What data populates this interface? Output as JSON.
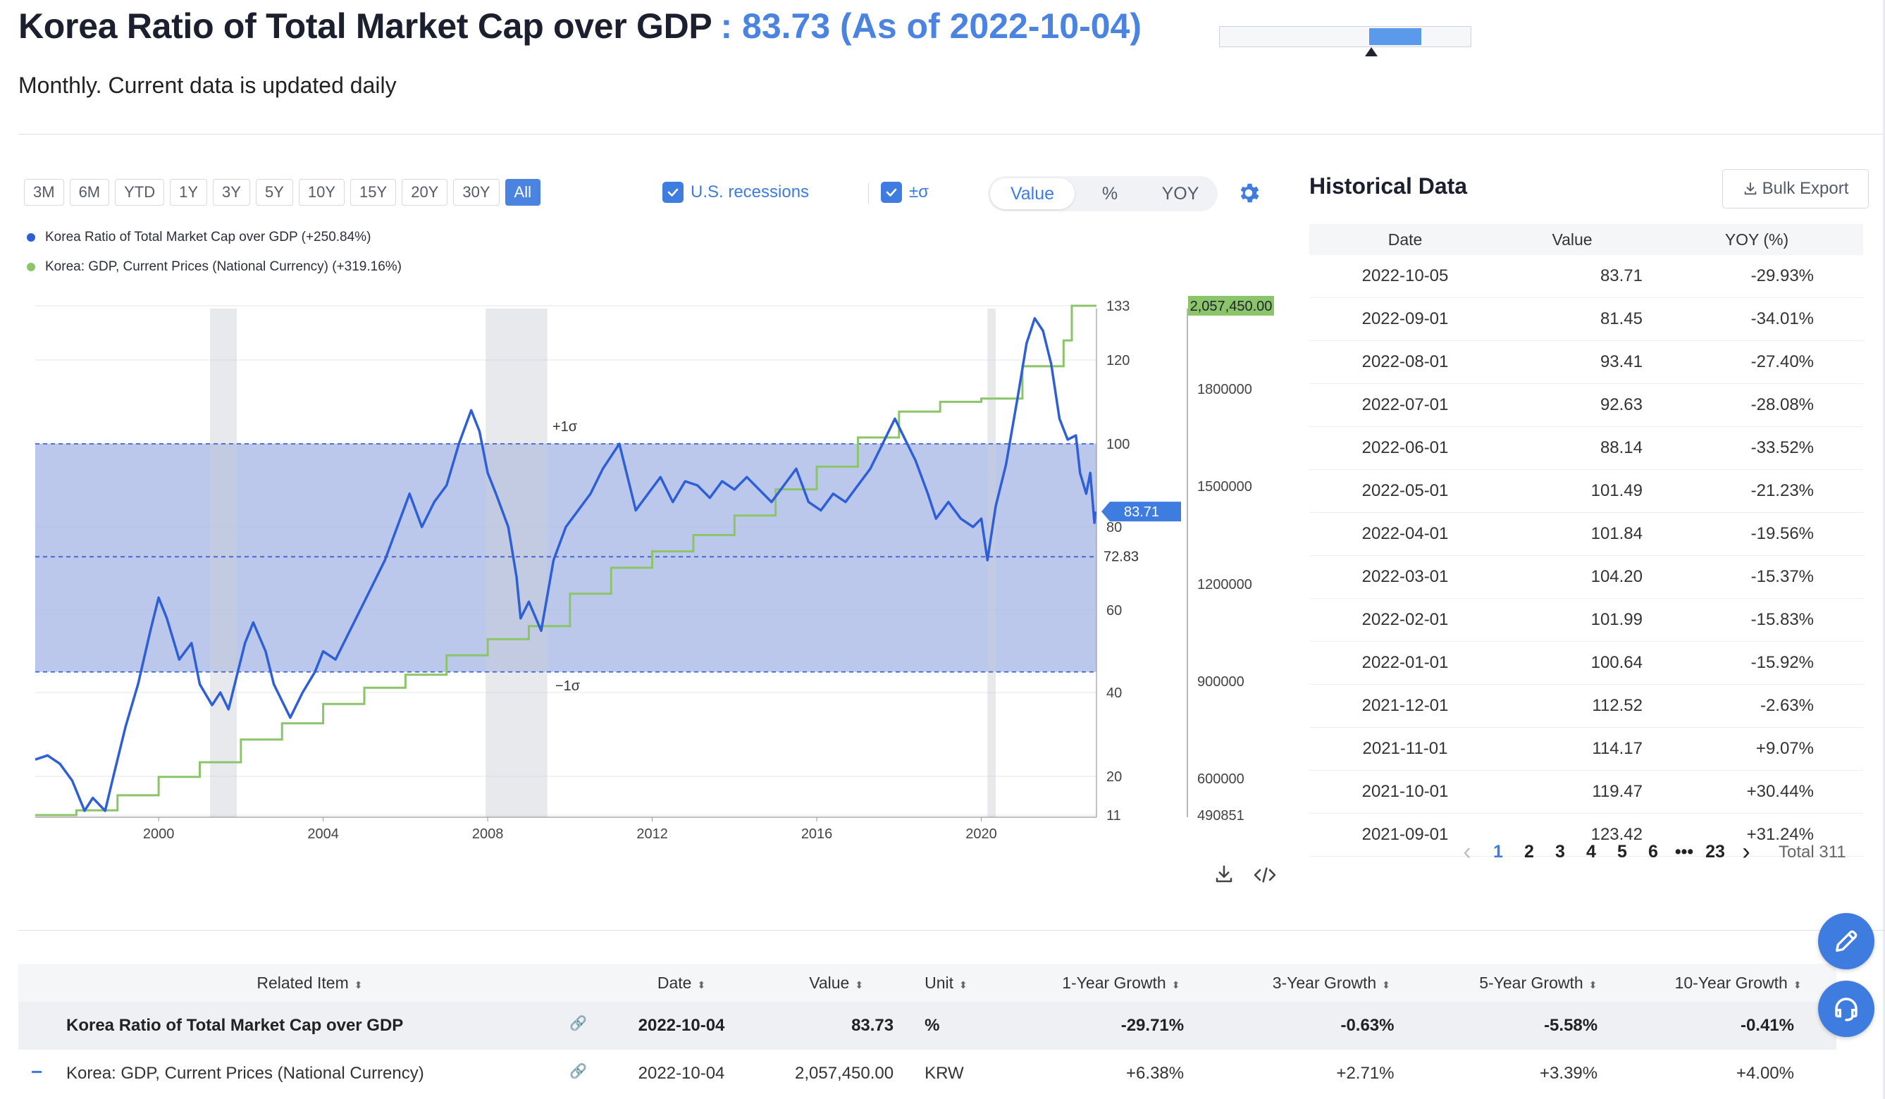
{
  "header": {
    "title": "Korea Ratio of Total Market Cap over GDP",
    "value_text": ": 83.73 (As of 2022-10-04)",
    "subtitle": "Monthly. Current data is updated daily"
  },
  "range_buttons": [
    "3M",
    "6M",
    "YTD",
    "1Y",
    "3Y",
    "5Y",
    "10Y",
    "15Y",
    "20Y",
    "30Y",
    "All"
  ],
  "active_range": "All",
  "toggles": {
    "recessions_label": "U.S. recessions",
    "sigma_label": "±σ"
  },
  "view_modes": [
    "Value",
    "%",
    "YOY"
  ],
  "active_view": "Value",
  "legend": [
    {
      "label": "Korea Ratio of Total Market Cap over GDP (+250.84%)",
      "color": "#2f5fd6"
    },
    {
      "label": "Korea: GDP, Current Prices (National Currency) (+319.16%)",
      "color": "#8cc46a"
    }
  ],
  "chart_data": {
    "type": "line",
    "x_ticks": [
      "2000",
      "2004",
      "2008",
      "2012",
      "2016",
      "2020"
    ],
    "left_axis_ticks": [
      "133",
      "120",
      "100",
      "80",
      "60",
      "40",
      "20",
      "11"
    ],
    "right_axis_ticks": [
      "1800000",
      "1500000",
      "1200000",
      "900000",
      "600000",
      "490851"
    ],
    "band_labels": {
      "upper": "+1σ",
      "lower": "−1σ",
      "mean": "72.83"
    },
    "mean": 72.83,
    "plus_sigma": 100,
    "minus_sigma": 45,
    "ylim_left": [
      11,
      133
    ],
    "ylim_right": [
      490851,
      2057450
    ],
    "recessions": [
      [
        2001.25,
        2001.9
      ],
      [
        2007.95,
        2009.45
      ],
      [
        2020.15,
        2020.35
      ]
    ],
    "current_labels": {
      "ratio": "83.71",
      "gdp": "2,057,450.00"
    },
    "series": [
      {
        "name": "Korea Ratio of Total Market Cap over GDP",
        "color": "#2f5fd6",
        "points": [
          [
            1997.0,
            24
          ],
          [
            1997.3,
            25
          ],
          [
            1997.6,
            23
          ],
          [
            1997.9,
            19
          ],
          [
            1998.2,
            12
          ],
          [
            1998.4,
            15
          ],
          [
            1998.7,
            12
          ],
          [
            1998.9,
            20
          ],
          [
            1999.2,
            32
          ],
          [
            1999.5,
            42
          ],
          [
            1999.8,
            55
          ],
          [
            2000.0,
            63
          ],
          [
            2000.2,
            58
          ],
          [
            2000.5,
            48
          ],
          [
            2000.8,
            52
          ],
          [
            2001.0,
            42
          ],
          [
            2001.3,
            37
          ],
          [
            2001.5,
            40
          ],
          [
            2001.7,
            36
          ],
          [
            2001.9,
            44
          ],
          [
            2002.1,
            52
          ],
          [
            2002.3,
            57
          ],
          [
            2002.6,
            50
          ],
          [
            2002.8,
            42
          ],
          [
            2003.0,
            38
          ],
          [
            2003.2,
            34
          ],
          [
            2003.5,
            40
          ],
          [
            2003.8,
            45
          ],
          [
            2004.0,
            50
          ],
          [
            2004.3,
            48
          ],
          [
            2004.6,
            54
          ],
          [
            2004.9,
            60
          ],
          [
            2005.2,
            66
          ],
          [
            2005.5,
            72
          ],
          [
            2005.8,
            80
          ],
          [
            2006.1,
            88
          ],
          [
            2006.4,
            80
          ],
          [
            2006.7,
            86
          ],
          [
            2007.0,
            90
          ],
          [
            2007.3,
            100
          ],
          [
            2007.6,
            108
          ],
          [
            2007.8,
            103
          ],
          [
            2008.0,
            93
          ],
          [
            2008.2,
            88
          ],
          [
            2008.5,
            80
          ],
          [
            2008.7,
            68
          ],
          [
            2008.8,
            58
          ],
          [
            2009.0,
            62
          ],
          [
            2009.3,
            55
          ],
          [
            2009.6,
            72
          ],
          [
            2009.9,
            80
          ],
          [
            2010.2,
            84
          ],
          [
            2010.5,
            88
          ],
          [
            2010.8,
            94
          ],
          [
            2011.0,
            97
          ],
          [
            2011.2,
            100
          ],
          [
            2011.4,
            92
          ],
          [
            2011.6,
            84
          ],
          [
            2011.9,
            88
          ],
          [
            2012.2,
            92
          ],
          [
            2012.5,
            86
          ],
          [
            2012.8,
            91
          ],
          [
            2013.1,
            90
          ],
          [
            2013.4,
            87
          ],
          [
            2013.7,
            91
          ],
          [
            2014.0,
            89
          ],
          [
            2014.3,
            92
          ],
          [
            2014.6,
            89
          ],
          [
            2014.9,
            86
          ],
          [
            2015.2,
            90
          ],
          [
            2015.5,
            94
          ],
          [
            2015.8,
            86
          ],
          [
            2016.1,
            84
          ],
          [
            2016.4,
            88
          ],
          [
            2016.7,
            86
          ],
          [
            2017.0,
            90
          ],
          [
            2017.3,
            94
          ],
          [
            2017.6,
            100
          ],
          [
            2017.9,
            106
          ],
          [
            2018.1,
            102
          ],
          [
            2018.4,
            96
          ],
          [
            2018.7,
            88
          ],
          [
            2018.9,
            82
          ],
          [
            2019.2,
            86
          ],
          [
            2019.5,
            82
          ],
          [
            2019.8,
            80
          ],
          [
            2020.0,
            82
          ],
          [
            2020.15,
            72
          ],
          [
            2020.35,
            85
          ],
          [
            2020.6,
            95
          ],
          [
            2020.9,
            112
          ],
          [
            2021.1,
            124
          ],
          [
            2021.3,
            130
          ],
          [
            2021.5,
            127
          ],
          [
            2021.7,
            119
          ],
          [
            2021.9,
            106
          ],
          [
            2022.1,
            101
          ],
          [
            2022.3,
            102
          ],
          [
            2022.4,
            93
          ],
          [
            2022.55,
            88
          ],
          [
            2022.65,
            93
          ],
          [
            2022.75,
            81
          ],
          [
            2022.77,
            83.71
          ]
        ]
      },
      {
        "name": "Korea: GDP, Current Prices (National Currency)",
        "color": "#8cc46a",
        "steps": [
          [
            1997.0,
            490851
          ],
          [
            1998.0,
            505000
          ],
          [
            1999.0,
            550000
          ],
          [
            2000.0,
            605000
          ],
          [
            2001.0,
            650000
          ],
          [
            2002.0,
            720000
          ],
          [
            2003.0,
            770000
          ],
          [
            2004.0,
            830000
          ],
          [
            2005.0,
            880000
          ],
          [
            2006.0,
            920000
          ],
          [
            2007.0,
            980000
          ],
          [
            2008.0,
            1030000
          ],
          [
            2009.0,
            1070000
          ],
          [
            2010.0,
            1170000
          ],
          [
            2011.0,
            1250000
          ],
          [
            2012.0,
            1300000
          ],
          [
            2013.0,
            1350000
          ],
          [
            2014.0,
            1410000
          ],
          [
            2015.0,
            1490000
          ],
          [
            2016.0,
            1560000
          ],
          [
            2017.0,
            1650000
          ],
          [
            2018.0,
            1730000
          ],
          [
            2019.0,
            1760000
          ],
          [
            2020.0,
            1770000
          ],
          [
            2021.0,
            1870000
          ],
          [
            2022.0,
            1950000
          ],
          [
            2022.2,
            2057450
          ]
        ]
      }
    ]
  },
  "historical": {
    "title": "Historical Data",
    "bulk_export": "Bulk Export",
    "columns": [
      "Date",
      "Value",
      "YOY (%)"
    ],
    "rows": [
      [
        "2022-10-05",
        "83.71",
        "-29.93%"
      ],
      [
        "2022-09-01",
        "81.45",
        "-34.01%"
      ],
      [
        "2022-08-01",
        "93.41",
        "-27.40%"
      ],
      [
        "2022-07-01",
        "92.63",
        "-28.08%"
      ],
      [
        "2022-06-01",
        "88.14",
        "-33.52%"
      ],
      [
        "2022-05-01",
        "101.49",
        "-21.23%"
      ],
      [
        "2022-04-01",
        "101.84",
        "-19.56%"
      ],
      [
        "2022-03-01",
        "104.20",
        "-15.37%"
      ],
      [
        "2022-02-01",
        "101.99",
        "-15.83%"
      ],
      [
        "2022-01-01",
        "100.64",
        "-15.92%"
      ],
      [
        "2021-12-01",
        "112.52",
        "-2.63%"
      ],
      [
        "2021-11-01",
        "114.17",
        "+9.07%"
      ],
      [
        "2021-10-01",
        "119.47",
        "+30.44%"
      ],
      [
        "2021-09-01",
        "123.42",
        "+31.24%"
      ]
    ],
    "pages": [
      "1",
      "2",
      "3",
      "4",
      "5",
      "6",
      "•••",
      "23"
    ],
    "active_page": "1",
    "total": "Total 311"
  },
  "related": {
    "columns": [
      "Related Item",
      "Date",
      "Value",
      "Unit",
      "1-Year Growth",
      "3-Year Growth",
      "5-Year Growth",
      "10-Year Growth"
    ],
    "rows": [
      [
        "Korea Ratio of Total Market Cap over GDP",
        "2022-10-04",
        "83.73",
        "%",
        "-29.71%",
        "-0.63%",
        "-5.58%",
        "-0.41%"
      ],
      [
        "Korea: GDP, Current Prices (National Currency)",
        "2022-10-04",
        "2,057,450.00",
        "KRW",
        "+6.38%",
        "+2.71%",
        "+3.39%",
        "+4.00%"
      ]
    ]
  }
}
